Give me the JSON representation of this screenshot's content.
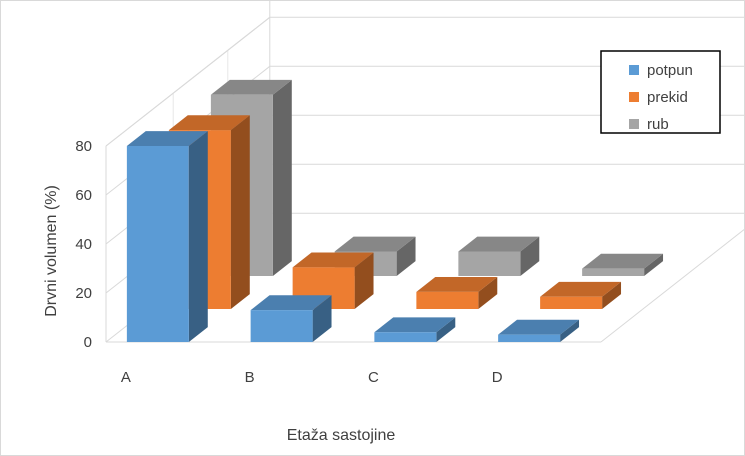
{
  "chart_data": {
    "type": "bar",
    "subtype": "3d-clustered",
    "title": "",
    "xlabel": "Etaža sastojine",
    "ylabel": "Drvni volumen (%)",
    "categories": [
      "A",
      "B",
      "C",
      "D"
    ],
    "ylim": [
      0,
      80
    ],
    "yticks": [
      0,
      20,
      40,
      60,
      80
    ],
    "grid": true,
    "legend_position": "top-right",
    "series": [
      {
        "name": "potpun",
        "color": "#5b9bd5",
        "values": [
          80,
          13,
          4,
          3
        ]
      },
      {
        "name": "prekid",
        "color": "#ed7d31",
        "values": [
          73,
          17,
          7,
          5
        ]
      },
      {
        "name": "rub",
        "color": "#a5a5a5",
        "values": [
          74,
          10,
          10,
          3
        ]
      }
    ]
  }
}
